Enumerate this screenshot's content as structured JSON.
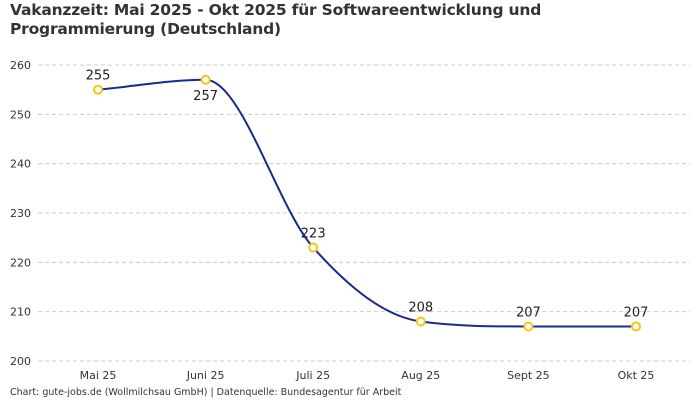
{
  "chart_data": {
    "type": "line",
    "title": "Vakanzzeit: Mai 2025 - Okt 2025 für Softwareentwicklung und Programmierung (Deutschland)",
    "categories": [
      "Mai 25",
      "Juni 25",
      "Juli 25",
      "Aug 25",
      "Sept 25",
      "Okt 25"
    ],
    "values": [
      255,
      257,
      223,
      208,
      207,
      207
    ],
    "data_labels": [
      "255",
      "257",
      "223",
      "208",
      "207",
      "207"
    ],
    "xlabel": "",
    "ylabel": "",
    "ylim": [
      200,
      260
    ],
    "yticks": [
      "200",
      "210",
      "220",
      "230",
      "240",
      "250",
      "260"
    ],
    "grid": "horizontal dashed",
    "curve": "smooth",
    "line_color": "#1a2a8c",
    "marker_color": "#f5c518"
  },
  "footer": "Chart: gute-jobs.de (Wollmilchsau GmbH) | Datenquelle: Bundesagentur für Arbeit"
}
